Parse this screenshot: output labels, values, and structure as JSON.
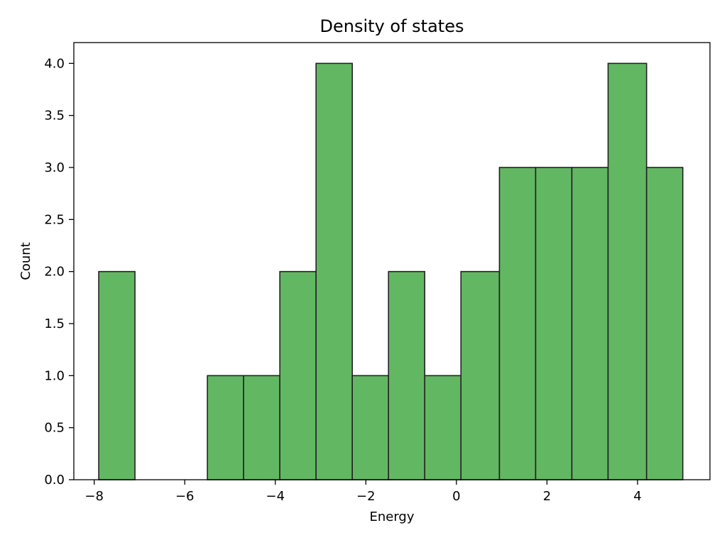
{
  "chart_data": {
    "type": "bar",
    "title": "Density of states",
    "xlabel": "Energy",
    "ylabel": "Count",
    "xlim": [
      -8.45,
      5.6
    ],
    "ylim": [
      0,
      4.2
    ],
    "xticks": [
      -8,
      -6,
      -4,
      -2,
      0,
      2,
      4
    ],
    "xtick_labels": [
      "−8",
      "−6",
      "−4",
      "−2",
      "0",
      "2",
      "4"
    ],
    "yticks": [
      0.0,
      0.5,
      1.0,
      1.5,
      2.0,
      2.5,
      3.0,
      3.5,
      4.0
    ],
    "ytick_labels": [
      "0.0",
      "0.5",
      "1.0",
      "1.5",
      "2.0",
      "2.5",
      "3.0",
      "3.5",
      "4.0"
    ],
    "bin_edges": [
      -7.9,
      -7.1,
      -6.3,
      -5.5,
      -4.7,
      -3.9,
      -3.1,
      -2.3,
      -1.5,
      -0.7,
      0.1,
      0.95,
      1.75,
      2.55,
      3.35,
      4.2,
      5.0
    ],
    "counts": [
      2,
      0,
      0,
      1,
      1,
      2,
      4,
      1,
      2,
      1,
      2,
      3,
      3,
      3,
      4,
      3
    ],
    "bar_color": "#62b862",
    "edge_color": "#222222",
    "grid": false
  }
}
